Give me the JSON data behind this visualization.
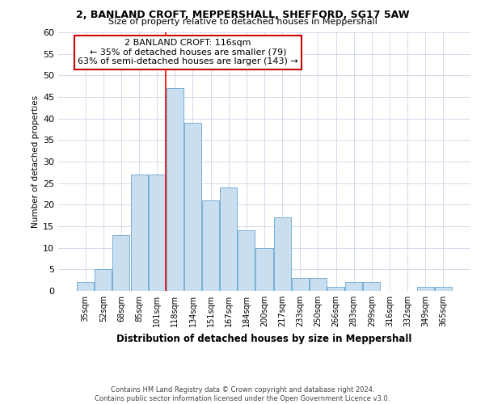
{
  "title1": "2, BANLAND CROFT, MEPPERSHALL, SHEFFORD, SG17 5AW",
  "title2": "Size of property relative to detached houses in Meppershall",
  "xlabel": "Distribution of detached houses by size in Meppershall",
  "ylabel": "Number of detached properties",
  "categories": [
    "35sqm",
    "52sqm",
    "68sqm",
    "85sqm",
    "101sqm",
    "118sqm",
    "134sqm",
    "151sqm",
    "167sqm",
    "184sqm",
    "200sqm",
    "217sqm",
    "233sqm",
    "250sqm",
    "266sqm",
    "283sqm",
    "299sqm",
    "316sqm",
    "332sqm",
    "349sqm",
    "365sqm"
  ],
  "values": [
    2,
    5,
    13,
    27,
    27,
    47,
    39,
    21,
    24,
    14,
    10,
    17,
    3,
    3,
    1,
    2,
    2,
    0,
    0,
    1,
    1
  ],
  "bar_color": "#c9dff0",
  "bar_edge_color": "#7aafd4",
  "red_line_index": 5,
  "ylim": [
    0,
    60
  ],
  "yticks": [
    0,
    5,
    10,
    15,
    20,
    25,
    30,
    35,
    40,
    45,
    50,
    55,
    60
  ],
  "annotation_box_text": "2 BANLAND CROFT: 116sqm\n← 35% of detached houses are smaller (79)\n63% of semi-detached houses are larger (143) →",
  "annotation_box_color": "#ffffff",
  "annotation_box_edge_color": "#cc0000",
  "footnote1": "Contains HM Land Registry data © Crown copyright and database right 2024.",
  "footnote2": "Contains public sector information licensed under the Open Government Licence v3.0.",
  "background_color": "#ffffff",
  "grid_color": "#ccd5e8"
}
